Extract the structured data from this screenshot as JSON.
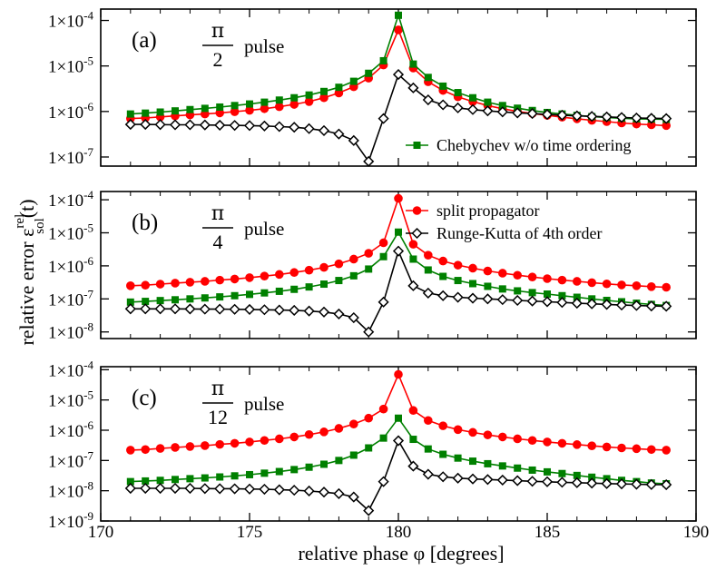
{
  "chart_data": {
    "type": "line",
    "xlabel": "relative phase  φ [degrees]",
    "ylabel": {
      "main": "relative error  ε",
      "sup": "rel",
      "sub": "sol",
      "suffix": "(t)"
    },
    "xlim": [
      170,
      190
    ],
    "xticks": [
      "170",
      "175",
      "180",
      "185",
      "190"
    ],
    "y_scale": "log",
    "series_styles": {
      "split": {
        "label": "split propagator",
        "color": "#ff0000",
        "marker": "circle"
      },
      "cheb": {
        "label": "Chebychev w/o time ordering",
        "color": "#008000",
        "marker": "square"
      },
      "rk4": {
        "label": "Runge-Kutta of 4th order",
        "color": "#000000",
        "marker": "diamond"
      }
    },
    "panels": [
      {
        "label": "(a)",
        "pulse_numerator": "π",
        "pulse_denominator": "2",
        "pulse_word": "pulse",
        "ylim_exp": [
          -7.2,
          -3.75
        ],
        "yticks_exp": [
          -7,
          -6,
          -5,
          -4
        ],
        "legend": [
          "cheb"
        ],
        "x": [
          171,
          171.5,
          172,
          172.5,
          173,
          173.5,
          174,
          174.5,
          175,
          175.5,
          176,
          176.5,
          177,
          177.5,
          178,
          178.5,
          179,
          179.5,
          180,
          180.5,
          181,
          181.5,
          182,
          182.5,
          183,
          183.5,
          184,
          184.5,
          185,
          185.5,
          186,
          186.5,
          187,
          187.5,
          188,
          188.5,
          189
        ],
        "series": {
          "split": [
            7e-07,
            7.2e-07,
            7.6e-07,
            8e-07,
            8.4e-07,
            8.8e-07,
            9.3e-07,
            9.9e-07,
            1.06e-06,
            1.15e-06,
            1.27e-06,
            1.43e-06,
            1.65e-06,
            2e-06,
            2.55e-06,
            3.5e-06,
            5.4e-06,
            1.05e-05,
            6.2e-05,
            9e-06,
            4.5e-06,
            2.9e-06,
            2.1e-06,
            1.65e-06,
            1.35e-06,
            1.15e-06,
            1e-06,
            9e-07,
            8.2e-07,
            7.5e-07,
            6.9e-07,
            6.4e-07,
            6e-07,
            5.6e-07,
            5.3e-07,
            5.1e-07,
            4.9e-07
          ],
          "cheb": [
            8.8e-07,
            9.2e-07,
            9.7e-07,
            1.03e-06,
            1.1e-06,
            1.17e-06,
            1.25e-06,
            1.35e-06,
            1.46e-06,
            1.6e-06,
            1.78e-06,
            2e-06,
            2.3e-06,
            2.75e-06,
            3.4e-06,
            4.6e-06,
            6.9e-06,
            1.3e-05,
            0.00013,
            1.1e-05,
            5.6e-06,
            3.6e-06,
            2.6e-06,
            2e-06,
            1.6e-06,
            1.35e-06,
            1.18e-06,
            1.05e-06,
            9.5e-07,
            8.8e-07,
            8.2e-07,
            7.7e-07,
            7.4e-07,
            7.1e-07,
            6.9e-07,
            6.8e-07,
            6.7e-07
          ],
          "rk4": [
            5.2e-07,
            5.2e-07,
            5.15e-07,
            5.1e-07,
            5.1e-07,
            5.05e-07,
            5e-07,
            4.95e-07,
            4.9e-07,
            4.8e-07,
            4.65e-07,
            4.5e-07,
            4.2e-07,
            3.8e-07,
            3.2e-07,
            2.3e-07,
            8e-08,
            7e-07,
            6.5e-06,
            3.3e-06,
            1.8e-06,
            1.4e-06,
            1.2e-06,
            1.1e-06,
            1.03e-06,
            9.8e-07,
            9.3e-07,
            9e-07,
            8.6e-07,
            8.3e-07,
            8e-07,
            7.8e-07,
            7.6e-07,
            7.4e-07,
            7.2e-07,
            7.1e-07,
            7e-07
          ]
        }
      },
      {
        "label": "(b)",
        "pulse_numerator": "π",
        "pulse_denominator": "4",
        "pulse_word": "pulse",
        "ylim_exp": [
          -8.2,
          -3.75
        ],
        "yticks_exp": [
          -8,
          -7,
          -6,
          -5,
          -4
        ],
        "legend": [
          "split",
          "rk4"
        ],
        "x": [
          171,
          171.5,
          172,
          172.5,
          173,
          173.5,
          174,
          174.5,
          175,
          175.5,
          176,
          176.5,
          177,
          177.5,
          178,
          178.5,
          179,
          179.5,
          180,
          180.5,
          181,
          181.5,
          182,
          182.5,
          183,
          183.5,
          184,
          184.5,
          185,
          185.5,
          186,
          186.5,
          187,
          187.5,
          188,
          188.5,
          189
        ],
        "series": {
          "split": [
            2.5e-07,
            2.6e-07,
            2.8e-07,
            3e-07,
            3.2e-07,
            3.4e-07,
            3.7e-07,
            4e-07,
            4.4e-07,
            4.9e-07,
            5.5e-07,
            6.3e-07,
            7.4e-07,
            9e-07,
            1.15e-06,
            1.6e-06,
            2.4e-06,
            5e-06,
            0.00011,
            4.5e-06,
            2.1e-06,
            1.4e-06,
            1.05e-06,
            8.5e-07,
            7e-07,
            6e-07,
            5.2e-07,
            4.6e-07,
            4.1e-07,
            3.7e-07,
            3.4e-07,
            3.1e-07,
            2.85e-07,
            2.65e-07,
            2.5e-07,
            2.35e-07,
            2.25e-07
          ],
          "cheb": [
            8e-08,
            8.4e-08,
            8.9e-08,
            9.4e-08,
            1e-07,
            1.07e-07,
            1.15e-07,
            1.25e-07,
            1.37e-07,
            1.52e-07,
            1.7e-07,
            1.95e-07,
            2.3e-07,
            2.8e-07,
            3.6e-07,
            5e-07,
            8e-07,
            1.9e-06,
            1.05e-05,
            1.6e-06,
            7.5e-07,
            4.8e-07,
            3.6e-07,
            2.9e-07,
            2.4e-07,
            2e-07,
            1.75e-07,
            1.55e-07,
            1.4e-07,
            1.25e-07,
            1.12e-07,
            1e-07,
            9e-08,
            8.2e-08,
            7.4e-08,
            6.8e-08,
            6.3e-08
          ],
          "rk4": [
            5e-08,
            5e-08,
            5e-08,
            5e-08,
            4.95e-08,
            4.9e-08,
            4.9e-08,
            4.85e-08,
            4.8e-08,
            4.7e-08,
            4.6e-08,
            4.5e-08,
            4.3e-08,
            4e-08,
            3.5e-08,
            2.7e-08,
            1e-08,
            8e-08,
            2.8e-06,
            2.5e-07,
            1.5e-07,
            1.25e-07,
            1.12e-07,
            1.05e-07,
            1e-07,
            9.5e-08,
            9e-08,
            8.6e-08,
            8.2e-08,
            7.8e-08,
            7.4e-08,
            7.1e-08,
            6.8e-08,
            6.5e-08,
            6.3e-08,
            6.1e-08,
            6e-08
          ]
        }
      },
      {
        "label": "(c)",
        "pulse_numerator": "π",
        "pulse_denominator": "12",
        "pulse_word": "pulse",
        "ylim_exp": [
          -9,
          -3.9
        ],
        "yticks_exp": [
          -9,
          -8,
          -7,
          -6,
          -5,
          -4
        ],
        "legend": [],
        "x": [
          171,
          171.5,
          172,
          172.5,
          173,
          173.5,
          174,
          174.5,
          175,
          175.5,
          176,
          176.5,
          177,
          177.5,
          178,
          178.5,
          179,
          179.5,
          180,
          180.5,
          181,
          181.5,
          182,
          182.5,
          183,
          183.5,
          184,
          184.5,
          185,
          185.5,
          186,
          186.5,
          187,
          187.5,
          188,
          188.5,
          189
        ],
        "series": {
          "split": [
            2.2e-07,
            2.3e-07,
            2.5e-07,
            2.7e-07,
            2.9e-07,
            3.1e-07,
            3.4e-07,
            3.7e-07,
            4.1e-07,
            4.6e-07,
            5.2e-07,
            6e-07,
            7.2e-07,
            8.8e-07,
            1.15e-06,
            1.6e-06,
            2.5e-06,
            5e-06,
            7e-05,
            4.5e-06,
            2.1e-06,
            1.4e-06,
            1.05e-06,
            8.5e-07,
            7e-07,
            6e-07,
            5.2e-07,
            4.6e-07,
            4.1e-07,
            3.7e-07,
            3.35e-07,
            3.05e-07,
            2.8e-07,
            2.6e-07,
            2.45e-07,
            2.3e-07,
            2.2e-07
          ],
          "cheb": [
            2e-08,
            2.1e-08,
            2.2e-08,
            2.35e-08,
            2.5e-08,
            2.65e-08,
            2.85e-08,
            3.1e-08,
            3.4e-08,
            3.8e-08,
            4.3e-08,
            5e-08,
            6e-08,
            7.5e-08,
            1e-07,
            1.5e-07,
            2.6e-07,
            5.5e-07,
            2.5e-06,
            5e-07,
            2.4e-07,
            1.6e-07,
            1.2e-07,
            9.5e-08,
            7.8e-08,
            6.6e-08,
            5.6e-08,
            4.8e-08,
            4.2e-08,
            3.7e-08,
            3.2e-08,
            2.8e-08,
            2.5e-08,
            2.2e-08,
            2e-08,
            1.8e-08,
            1.7e-08
          ],
          "rk4": [
            1.2e-08,
            1.2e-08,
            1.2e-08,
            1.2e-08,
            1.2e-08,
            1.18e-08,
            1.17e-08,
            1.16e-08,
            1.14e-08,
            1.12e-08,
            1.08e-08,
            1.04e-08,
            9.8e-09,
            9e-09,
            8e-09,
            6.2e-09,
            2.2e-09,
            2e-08,
            4.5e-07,
            6.5e-08,
            3.5e-08,
            2.9e-08,
            2.6e-08,
            2.45e-08,
            2.35e-08,
            2.25e-08,
            2.15e-08,
            2.05e-08,
            1.98e-08,
            1.9e-08,
            1.84e-08,
            1.78e-08,
            1.72e-08,
            1.68e-08,
            1.64e-08,
            1.6e-08,
            1.58e-08
          ]
        }
      }
    ]
  }
}
